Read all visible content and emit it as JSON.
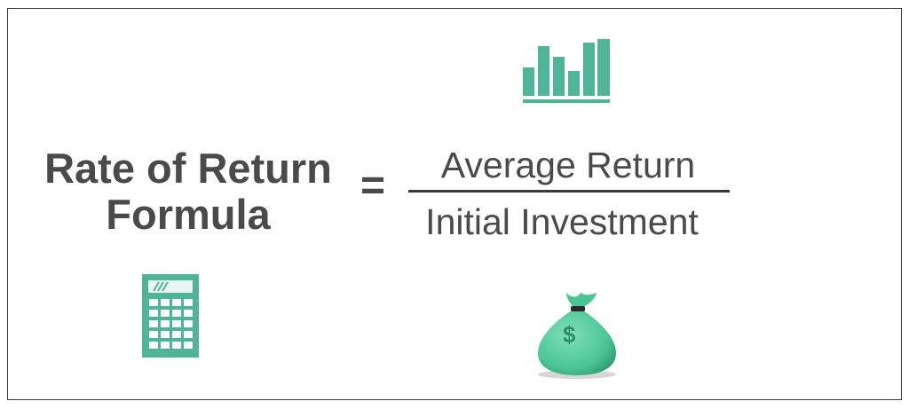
{
  "formula": {
    "lhs_line1": "Rate of Return",
    "lhs_line2": "Formula",
    "equals": "=",
    "numerator": "Average Return",
    "denominator": "Initial Investment"
  },
  "icons": {
    "chart": "bar-chart-icon",
    "calculator": "calculator-icon",
    "money_bag": "money-bag-icon",
    "money_bag_symbol": "$"
  },
  "colors": {
    "text": "#4a4a4a",
    "accent": "#4eb596",
    "accent_dark": "#3a9a7c"
  }
}
